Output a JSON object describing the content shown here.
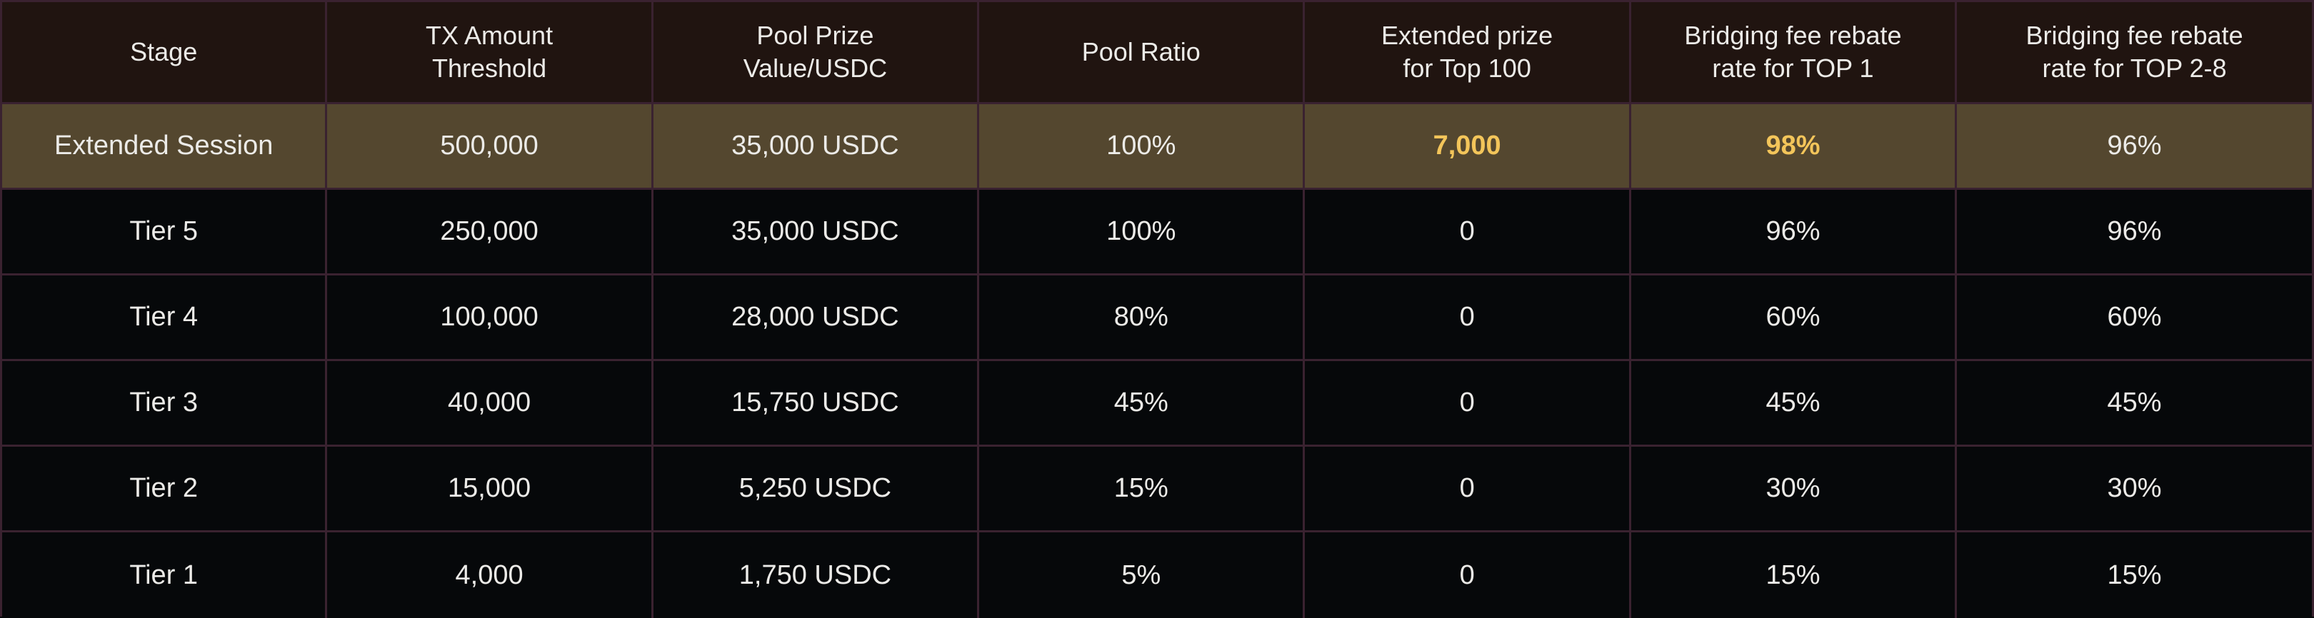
{
  "colors": {
    "header_bg": "#201410",
    "highlight_bg": "#54472f",
    "body_bg": "#06080a",
    "border": "#3a2230",
    "text": "#ecebe8",
    "accent_gold": "#f3c55a"
  },
  "headers": [
    "Stage",
    "TX Amount\nThreshold",
    "Pool Prize\nValue/USDC",
    "Pool Ratio",
    "Extended prize\nfor Top 100",
    "Bridging fee rebate\nrate for TOP 1",
    "Bridging fee rebate\nrate for TOP 2-8"
  ],
  "highlight_row": [
    "Extended Session",
    "500,000",
    "35,000 USDC",
    "100%",
    "7,000",
    "98%",
    "96%"
  ],
  "rows": [
    [
      "Tier 5",
      "250,000",
      "35,000 USDC",
      "100%",
      "0",
      "96%",
      "96%"
    ],
    [
      "Tier 4",
      "100,000",
      "28,000 USDC",
      "80%",
      "0",
      "60%",
      "60%"
    ],
    [
      "Tier 3",
      "40,000",
      "15,750 USDC",
      "45%",
      "0",
      "45%",
      "45%"
    ],
    [
      "Tier 2",
      "15,000",
      "5,250 USDC",
      "15%",
      "0",
      "30%",
      "30%"
    ],
    [
      "Tier 1",
      "4,000",
      "1,750 USDC",
      "5%",
      "0",
      "15%",
      "15%"
    ]
  ]
}
